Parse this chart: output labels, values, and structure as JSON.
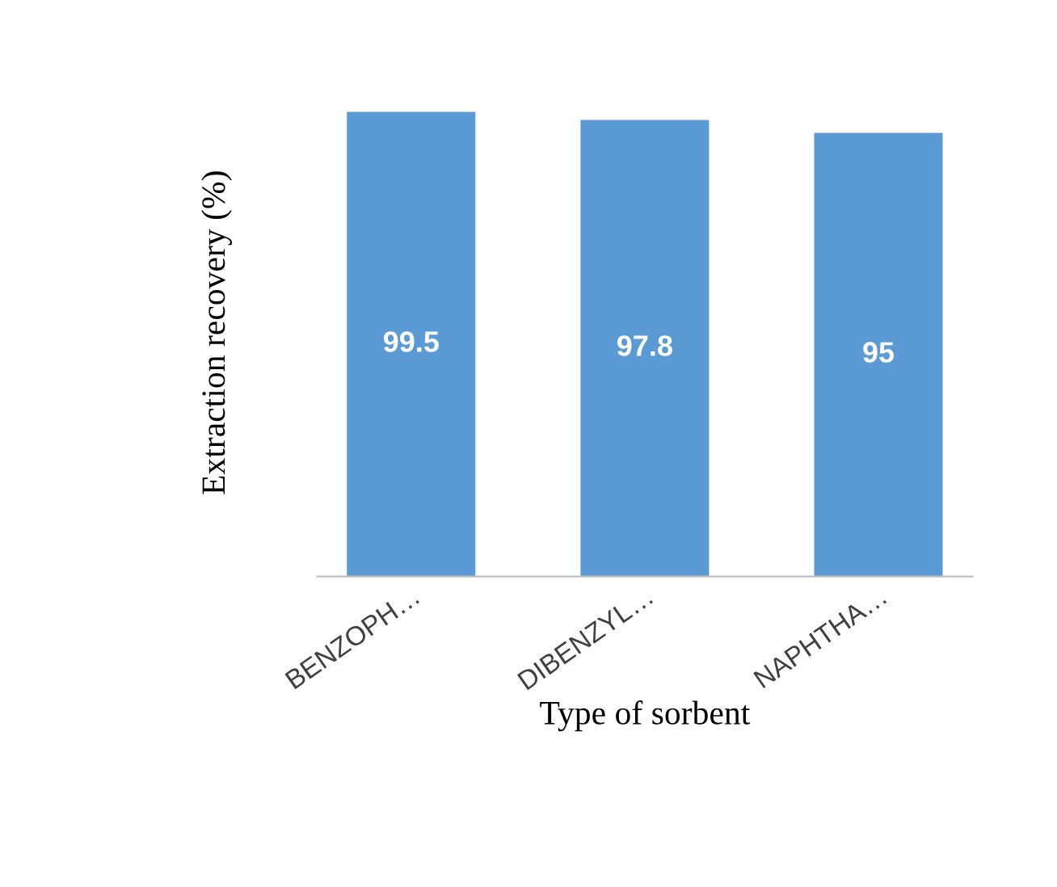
{
  "chart_data": {
    "type": "bar",
    "xlabel": "Type of sorbent",
    "ylabel": "Extraction recovery (%)",
    "categories": [
      "BENZOPH…",
      "DIBENZYL…",
      "NAPHTHA…"
    ],
    "values": [
      99.5,
      97.8,
      95
    ],
    "color": "#5b9bd5",
    "data_labels": true,
    "tick_labels": "x",
    "grid": false,
    "legend": false
  }
}
